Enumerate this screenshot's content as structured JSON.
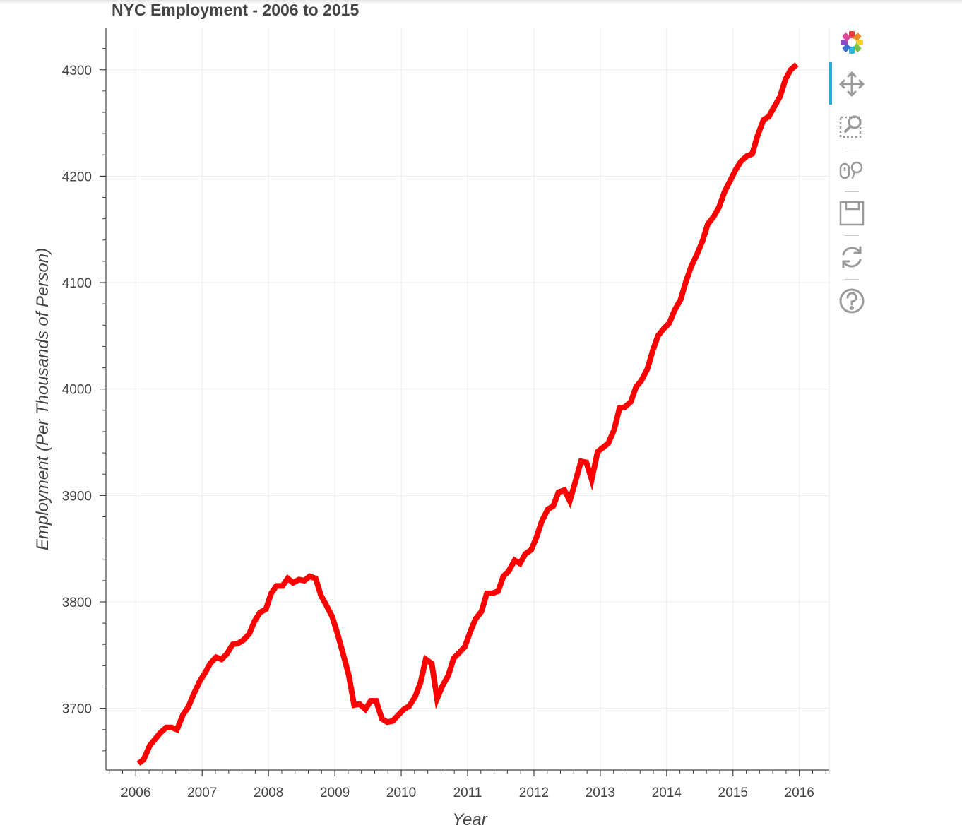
{
  "chart_data": {
    "type": "line",
    "title": "NYC Employment - 2006 to 2015",
    "xlabel": "Year",
    "ylabel": "Employment (Per Thousands of Person)",
    "xlim": [
      2005.55,
      2016.45
    ],
    "ylim": [
      3642,
      4339
    ],
    "x_ticks": [
      "2006",
      "2007",
      "2008",
      "2009",
      "2010",
      "2011",
      "2012",
      "2013",
      "2014",
      "2015",
      "2016"
    ],
    "y_ticks": [
      "3700",
      "3800",
      "3900",
      "4000",
      "4100",
      "4200",
      "4300"
    ],
    "grid": true,
    "line_color": "#ff0000",
    "series": [
      {
        "x": [
          2006.04,
          2006.12,
          2006.21,
          2006.29,
          2006.37,
          2006.46,
          2006.54,
          2006.62,
          2006.71,
          2006.79,
          2006.87,
          2006.96,
          2007.04,
          2007.12,
          2007.21,
          2007.29,
          2007.37,
          2007.46,
          2007.54,
          2007.62,
          2007.71,
          2007.79,
          2007.87,
          2007.96,
          2008.04,
          2008.12,
          2008.21,
          2008.29,
          2008.37,
          2008.46,
          2008.54,
          2008.62,
          2008.71,
          2008.79,
          2008.87,
          2008.96,
          2009.04,
          2009.12,
          2009.21,
          2009.29,
          2009.37,
          2009.46,
          2009.54,
          2009.62,
          2009.71,
          2009.79,
          2009.87,
          2009.96,
          2010.04,
          2010.12,
          2010.21,
          2010.29,
          2010.37,
          2010.46,
          2010.54,
          2010.62,
          2010.71,
          2010.79,
          2010.87,
          2010.96,
          2011.04,
          2011.12,
          2011.21,
          2011.29,
          2011.37,
          2011.46,
          2011.54,
          2011.62,
          2011.71,
          2011.79,
          2011.87,
          2011.96,
          2012.04,
          2012.12,
          2012.21,
          2012.29,
          2012.37,
          2012.46,
          2012.54,
          2012.62,
          2012.71,
          2012.79,
          2012.87,
          2012.96,
          2013.04,
          2013.12,
          2013.21,
          2013.29,
          2013.37,
          2013.46,
          2013.54,
          2013.62,
          2013.71,
          2013.79,
          2013.87,
          2013.96,
          2014.04,
          2014.12,
          2014.21,
          2014.29,
          2014.37,
          2014.46,
          2014.54,
          2014.62,
          2014.71,
          2014.79,
          2014.87,
          2014.96,
          2015.04,
          2015.12,
          2015.21,
          2015.29,
          2015.37,
          2015.46,
          2015.54,
          2015.62,
          2015.71,
          2015.79,
          2015.87,
          2015.96
        ],
        "values": [
          3648,
          3652,
          3665,
          3671,
          3677,
          3682,
          3682,
          3680,
          3694,
          3701,
          3713,
          3725,
          3733,
          3742,
          3748,
          3746,
          3751,
          3760,
          3761,
          3764,
          3770,
          3782,
          3790,
          3793,
          3808,
          3815,
          3815,
          3822,
          3818,
          3821,
          3820,
          3824,
          3822,
          3806,
          3797,
          3786,
          3770,
          3752,
          3731,
          3703,
          3704,
          3699,
          3707,
          3707,
          3690,
          3687,
          3688,
          3694,
          3699,
          3702,
          3711,
          3724,
          3746,
          3742,
          3709,
          3721,
          3731,
          3747,
          3752,
          3758,
          3772,
          3784,
          3791,
          3808,
          3808,
          3810,
          3824,
          3829,
          3839,
          3836,
          3845,
          3849,
          3861,
          3876,
          3887,
          3890,
          3903,
          3905,
          3895,
          3912,
          3932,
          3931,
          3915,
          3941,
          3945,
          3949,
          3962,
          3982,
          3983,
          3988,
          4002,
          4008,
          4019,
          4036,
          4050,
          4057,
          4062,
          4074,
          4084,
          4101,
          4115,
          4127,
          4139,
          4155,
          4162,
          4171,
          4185,
          4196,
          4206,
          4214,
          4219,
          4221,
          4238,
          4253,
          4256,
          4265,
          4275,
          4291,
          4300,
          4305
        ]
      }
    ]
  },
  "toolbar": {
    "tools": [
      "bokeh-logo-icon",
      "pan-icon",
      "box-zoom-icon",
      "wheel-zoom-icon",
      "save-icon",
      "reset-icon",
      "help-icon"
    ]
  }
}
